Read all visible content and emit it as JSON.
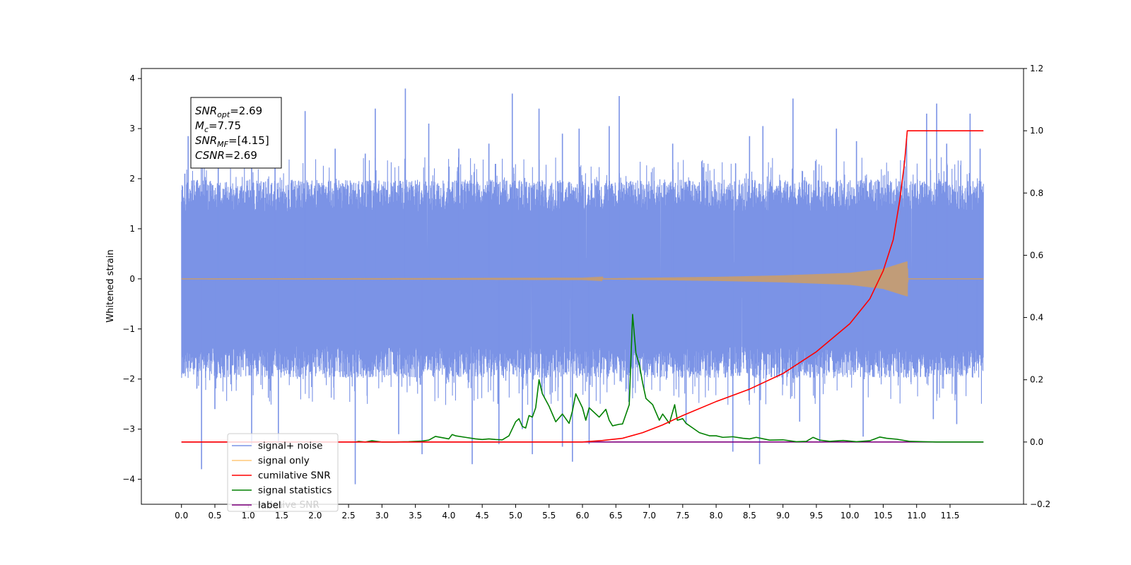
{
  "chart_data": {
    "type": "line",
    "ylabel": "Whitened strain",
    "xlim": [
      -0.6,
      12.6
    ],
    "ylim": [
      -4.5,
      4.2
    ],
    "ylim_right": [
      -0.2,
      1.2
    ],
    "x_ticks": [
      "0.0",
      "0.5",
      "1.0",
      "1.5",
      "2.0",
      "2.5",
      "3.0",
      "3.5",
      "4.0",
      "4.5",
      "5.0",
      "5.5",
      "6.0",
      "6.5",
      "7.0",
      "7.5",
      "8.0",
      "8.5",
      "9.0",
      "9.5",
      "10.0",
      "10.5",
      "11.0",
      "11.5"
    ],
    "y_ticks_left": [
      "4",
      "3",
      "2",
      "1",
      "0",
      "−1",
      "−2",
      "−3",
      "−4"
    ],
    "y_ticks_right": [
      "1.2",
      "1.0",
      "0.8",
      "0.6",
      "0.4",
      "0.2",
      "0.0",
      "−0.2"
    ],
    "grid": false,
    "legend_position": "lower-left",
    "legend": [
      {
        "label": "signal+ noise",
        "color": "#7b93e6"
      },
      {
        "label": "signal only",
        "color": "#ffc878"
      },
      {
        "label": "cumilative SNR",
        "color": "#ff0000"
      },
      {
        "label": "signal statistics",
        "color": "#008000"
      },
      {
        "label": "label",
        "color": "#800080"
      }
    ],
    "legend_overlap_text": "lative SNR",
    "annotation": {
      "lines": [
        {
          "base": "SNR",
          "sub": "opt",
          "rest": "=2.69"
        },
        {
          "base": "M",
          "sub": "c",
          "rest": "=7.75"
        },
        {
          "base": "SNR",
          "sub": "MF",
          "rest": "=[4.15]"
        },
        {
          "base": "CSNR",
          "sub": "",
          "rest": "=2.69"
        }
      ]
    },
    "series": [
      {
        "name": "signal+ noise",
        "axis": "left",
        "color": "#7b93e6",
        "x_range": [
          0.0,
          12.0
        ],
        "envelope_upper_typ": 1.8,
        "envelope_lower_typ": -1.8,
        "peaks_up": [
          [
            0.05,
            2.1
          ],
          [
            0.1,
            2.85
          ],
          [
            0.55,
            2.3
          ],
          [
            1.05,
            2.75
          ],
          [
            1.4,
            2.5
          ],
          [
            1.85,
            3.35
          ],
          [
            2.3,
            2.6
          ],
          [
            2.75,
            2.5
          ],
          [
            2.9,
            3.4
          ],
          [
            3.35,
            3.8
          ],
          [
            3.7,
            3.1
          ],
          [
            4.15,
            2.6
          ],
          [
            4.6,
            2.7
          ],
          [
            4.95,
            3.7
          ],
          [
            5.35,
            3.4
          ],
          [
            5.7,
            2.9
          ],
          [
            5.95,
            3.0
          ],
          [
            6.4,
            3.05
          ],
          [
            6.55,
            3.65
          ],
          [
            7.35,
            2.7
          ],
          [
            8.5,
            2.85
          ],
          [
            8.7,
            3.05
          ],
          [
            9.15,
            3.6
          ],
          [
            9.8,
            3.0
          ],
          [
            10.1,
            2.75
          ],
          [
            10.85,
            2.8
          ],
          [
            11.15,
            3.3
          ],
          [
            11.3,
            3.5
          ],
          [
            11.45,
            2.7
          ],
          [
            11.8,
            3.3
          ],
          [
            11.95,
            2.6
          ]
        ],
        "peaks_down": [
          [
            0.05,
            -1.6
          ],
          [
            0.3,
            -3.8
          ],
          [
            0.5,
            -2.6
          ],
          [
            1.05,
            -3.3
          ],
          [
            1.45,
            -3.25
          ],
          [
            2.6,
            -4.1
          ],
          [
            3.25,
            -3.1
          ],
          [
            3.6,
            -3.5
          ],
          [
            4.35,
            -3.7
          ],
          [
            4.75,
            -3.3
          ],
          [
            5.1,
            -3.0
          ],
          [
            5.25,
            -3.5
          ],
          [
            5.7,
            -3.35
          ],
          [
            5.85,
            -3.65
          ],
          [
            6.1,
            -3.3
          ],
          [
            7.55,
            -2.9
          ],
          [
            8.25,
            -3.45
          ],
          [
            8.65,
            -3.7
          ],
          [
            9.25,
            -2.85
          ],
          [
            9.55,
            -3.25
          ],
          [
            10.2,
            -3.15
          ],
          [
            11.25,
            -2.8
          ],
          [
            11.6,
            -2.9
          ],
          [
            11.9,
            -1.6
          ]
        ]
      },
      {
        "name": "signal only",
        "axis": "left",
        "color": "#c19c78",
        "x_range": [
          0.0,
          12.0
        ],
        "amplitude_points": [
          [
            0.0,
            0.0
          ],
          [
            6.0,
            0.005
          ],
          [
            8.0,
            0.04
          ],
          [
            9.0,
            0.07
          ],
          [
            10.0,
            0.12
          ],
          [
            10.5,
            0.2
          ],
          [
            10.86,
            0.35
          ],
          [
            10.87,
            0.0
          ],
          [
            12.0,
            0.0
          ]
        ]
      },
      {
        "name": "cumilative SNR",
        "axis": "right",
        "color": "#ff0000",
        "points": [
          [
            0.0,
            0.0
          ],
          [
            5.5,
            0.0
          ],
          [
            6.0,
            0.0
          ],
          [
            6.3,
            0.005
          ],
          [
            6.6,
            0.012
          ],
          [
            6.9,
            0.03
          ],
          [
            7.2,
            0.055
          ],
          [
            7.5,
            0.085
          ],
          [
            8.0,
            0.13
          ],
          [
            8.5,
            0.17
          ],
          [
            9.0,
            0.22
          ],
          [
            9.5,
            0.29
          ],
          [
            10.0,
            0.38
          ],
          [
            10.3,
            0.46
          ],
          [
            10.5,
            0.55
          ],
          [
            10.65,
            0.65
          ],
          [
            10.75,
            0.78
          ],
          [
            10.82,
            0.9
          ],
          [
            10.86,
            1.0
          ],
          [
            12.0,
            1.0
          ]
        ]
      },
      {
        "name": "signal statistics",
        "axis": "right",
        "color": "#008000",
        "points": [
          [
            2.6,
            0.0
          ],
          [
            2.65,
            0.002
          ],
          [
            2.75,
            0.0
          ],
          [
            2.85,
            0.004
          ],
          [
            3.0,
            0.0
          ],
          [
            3.2,
            0.0
          ],
          [
            3.4,
            0.001
          ],
          [
            3.6,
            0.003
          ],
          [
            3.7,
            0.006
          ],
          [
            3.8,
            0.018
          ],
          [
            3.9,
            0.014
          ],
          [
            4.0,
            0.01
          ],
          [
            4.05,
            0.024
          ],
          [
            4.1,
            0.02
          ],
          [
            4.25,
            0.015
          ],
          [
            4.4,
            0.01
          ],
          [
            4.5,
            0.008
          ],
          [
            4.6,
            0.01
          ],
          [
            4.7,
            0.008
          ],
          [
            4.8,
            0.007
          ],
          [
            4.9,
            0.02
          ],
          [
            5.0,
            0.065
          ],
          [
            5.05,
            0.075
          ],
          [
            5.1,
            0.05
          ],
          [
            5.15,
            0.045
          ],
          [
            5.2,
            0.085
          ],
          [
            5.25,
            0.08
          ],
          [
            5.3,
            0.11
          ],
          [
            5.35,
            0.2
          ],
          [
            5.4,
            0.155
          ],
          [
            5.5,
            0.115
          ],
          [
            5.55,
            0.09
          ],
          [
            5.6,
            0.065
          ],
          [
            5.7,
            0.09
          ],
          [
            5.8,
            0.06
          ],
          [
            5.85,
            0.1
          ],
          [
            5.9,
            0.155
          ],
          [
            6.0,
            0.11
          ],
          [
            6.05,
            0.07
          ],
          [
            6.1,
            0.11
          ],
          [
            6.2,
            0.09
          ],
          [
            6.25,
            0.08
          ],
          [
            6.35,
            0.105
          ],
          [
            6.4,
            0.07
          ],
          [
            6.45,
            0.052
          ],
          [
            6.55,
            0.057
          ],
          [
            6.6,
            0.058
          ],
          [
            6.7,
            0.12
          ],
          [
            6.75,
            0.41
          ],
          [
            6.8,
            0.285
          ],
          [
            6.85,
            0.25
          ],
          [
            6.9,
            0.19
          ],
          [
            6.95,
            0.14
          ],
          [
            7.05,
            0.12
          ],
          [
            7.15,
            0.07
          ],
          [
            7.2,
            0.09
          ],
          [
            7.3,
            0.06
          ],
          [
            7.38,
            0.12
          ],
          [
            7.42,
            0.07
          ],
          [
            7.5,
            0.075
          ],
          [
            7.55,
            0.06
          ],
          [
            7.65,
            0.045
          ],
          [
            7.75,
            0.03
          ],
          [
            7.9,
            0.02
          ],
          [
            8.0,
            0.02
          ],
          [
            8.1,
            0.015
          ],
          [
            8.25,
            0.017
          ],
          [
            8.4,
            0.012
          ],
          [
            8.5,
            0.01
          ],
          [
            8.6,
            0.015
          ],
          [
            8.8,
            0.006
          ],
          [
            9.0,
            0.007
          ],
          [
            9.2,
            0.001
          ],
          [
            9.35,
            0.002
          ],
          [
            9.45,
            0.015
          ],
          [
            9.55,
            0.006
          ],
          [
            9.7,
            0.002
          ],
          [
            9.9,
            0.005
          ],
          [
            10.1,
            0.001
          ],
          [
            10.3,
            0.004
          ],
          [
            10.45,
            0.016
          ],
          [
            10.55,
            0.012
          ],
          [
            10.7,
            0.009
          ],
          [
            10.9,
            0.002
          ],
          [
            11.1,
            0.001
          ],
          [
            11.3,
            0.0
          ],
          [
            11.5,
            0.0
          ],
          [
            11.7,
            0.0
          ],
          [
            12.0,
            0.0
          ]
        ]
      },
      {
        "name": "label",
        "axis": "right",
        "color": "#800080",
        "points": [
          [
            0.0,
            0.0
          ],
          [
            12.0,
            0.0
          ]
        ]
      }
    ]
  }
}
